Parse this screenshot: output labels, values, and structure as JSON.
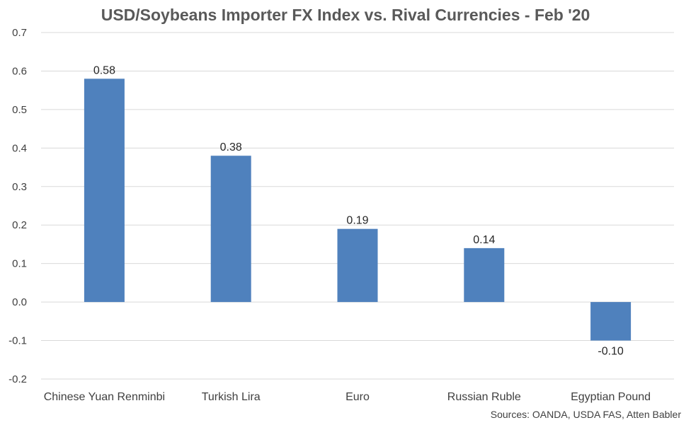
{
  "chart_data": {
    "type": "bar",
    "title": "USD/Soybeans Importer FX Index vs. Rival Currencies - Feb '20",
    "categories": [
      "Chinese Yuan Renminbi",
      "Turkish Lira",
      "Euro",
      "Russian Ruble",
      "Egyptian Pound"
    ],
    "values": [
      0.58,
      0.38,
      0.19,
      0.14,
      -0.1
    ],
    "data_labels": [
      "0.58",
      "0.38",
      "0.19",
      "0.14",
      "-0.10"
    ],
    "ylim": [
      -0.2,
      0.7
    ],
    "yticks": [
      0.7,
      0.6,
      0.5,
      0.4,
      0.3,
      0.2,
      0.1,
      0.0,
      -0.1,
      -0.2
    ],
    "ytick_labels": [
      "0.7",
      "0.6",
      "0.5",
      "0.4",
      "0.3",
      "0.2",
      "0.1",
      "0.0",
      "-0.1",
      "-0.2"
    ],
    "grid": true,
    "bar_color": "#4f81bd",
    "source": "Sources: OANDA, USDA FAS, Atten Babler"
  }
}
